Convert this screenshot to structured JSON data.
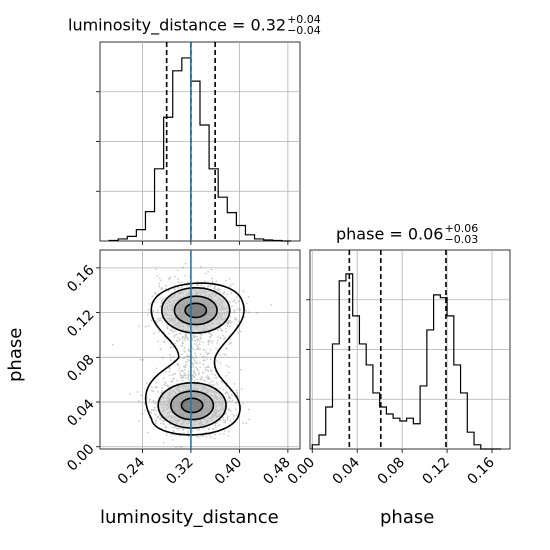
{
  "titles": {
    "luminosity_distance": {
      "label": "luminosity_distance",
      "value": "0.32",
      "plus": "+0.04",
      "minus": "−0.04"
    },
    "phase": {
      "label": "phase",
      "value": "0.06",
      "plus": "+0.06",
      "minus": "−0.03"
    }
  },
  "axes": {
    "luminosity_distance": {
      "label": "luminosity_distance",
      "ticks": [
        0.24,
        0.32,
        0.4,
        0.48
      ],
      "tick_labels": [
        "0.24",
        "0.32",
        "0.40",
        "0.48"
      ],
      "range": [
        0.17,
        0.5
      ]
    },
    "phase": {
      "label": "phase",
      "ticks": [
        0.0,
        0.04,
        0.08,
        0.12,
        0.16
      ],
      "tick_labels": [
        "0.00",
        "0.04",
        "0.08",
        "0.12",
        "0.16"
      ],
      "range": [
        -0.002,
        0.176
      ]
    }
  },
  "colors": {
    "truth": "#1f77b4",
    "hist": "#000000",
    "grid": "#b0b0b0"
  },
  "chart_data": [
    {
      "type": "histogram",
      "panel": "luminosity_distance marginal",
      "bin_edges": [
        0.185,
        0.2,
        0.215,
        0.23,
        0.245,
        0.26,
        0.275,
        0.29,
        0.305,
        0.32,
        0.335,
        0.35,
        0.365,
        0.38,
        0.395,
        0.41,
        0.425,
        0.44,
        0.455,
        0.47,
        0.485
      ],
      "counts": [
        1,
        4,
        9,
        22,
        57,
        140,
        240,
        330,
        355,
        310,
        225,
        140,
        85,
        55,
        30,
        12,
        4,
        2,
        1,
        0
      ],
      "quantiles": [
        0.28,
        0.32,
        0.36
      ],
      "truth": 0.32
    },
    {
      "type": "histogram",
      "panel": "phase marginal",
      "bin_edges": [
        0.0,
        0.006,
        0.012,
        0.018,
        0.024,
        0.03,
        0.036,
        0.042,
        0.048,
        0.054,
        0.06,
        0.066,
        0.072,
        0.078,
        0.084,
        0.09,
        0.096,
        0.102,
        0.108,
        0.114,
        0.12,
        0.126,
        0.132,
        0.138,
        0.144,
        0.15,
        0.156,
        0.162,
        0.168
      ],
      "counts": [
        3,
        10,
        30,
        75,
        120,
        125,
        95,
        75,
        60,
        40,
        30,
        25,
        22,
        20,
        22,
        18,
        45,
        85,
        110,
        108,
        95,
        60,
        40,
        12,
        3,
        0,
        0,
        0
      ],
      "quantiles": [
        0.033,
        0.061,
        0.119
      ]
    },
    {
      "type": "scatter",
      "panel": "phase vs luminosity_distance (2-D posterior)",
      "x_label": "luminosity_distance",
      "y_label": "phase",
      "modes": [
        {
          "x": 0.328,
          "y": 0.122,
          "sx": 0.032,
          "sy": 0.011
        },
        {
          "x": 0.322,
          "y": 0.037,
          "sx": 0.032,
          "sy": 0.011
        }
      ],
      "truth_x": 0.32,
      "contour_levels": [
        "inner",
        "middle",
        "outer"
      ]
    }
  ]
}
